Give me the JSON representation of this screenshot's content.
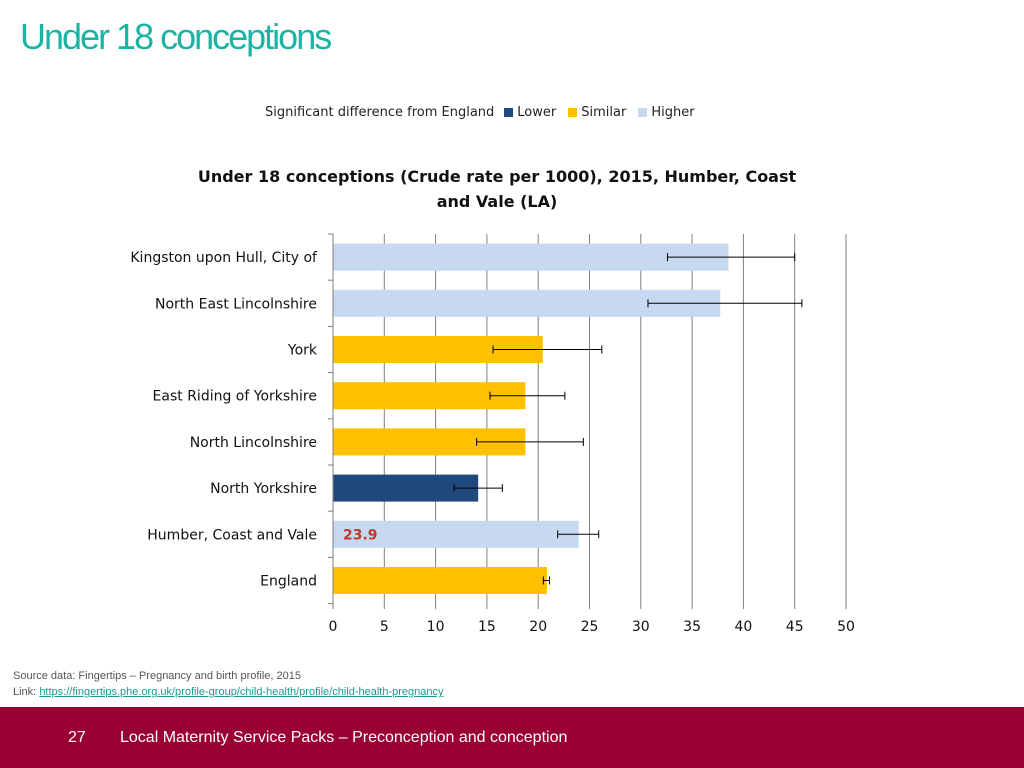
{
  "slide": {
    "title": "Under 18 conceptions"
  },
  "legend": {
    "label": "Significant difference from England",
    "items": [
      {
        "label": "Lower",
        "color": "#1f497d"
      },
      {
        "label": "Similar",
        "color": "#ffc000"
      },
      {
        "label": "Higher",
        "color": "#c6d9f1"
      }
    ]
  },
  "chart_data": {
    "type": "bar",
    "orientation": "horizontal",
    "title": "Under 18 conceptions (Crude rate per 1000), 2015, Humber, Coast and Vale (LA)",
    "title_lines": [
      "Under 18 conceptions (Crude rate per 1000), 2015, Humber, Coast",
      "and Vale (LA)"
    ],
    "xlim": [
      0,
      50
    ],
    "xticks": [
      0,
      5,
      10,
      15,
      20,
      25,
      30,
      35,
      40,
      45,
      50
    ],
    "grid": true,
    "categories": [
      "Kingston upon Hull, City of",
      "North East Lincolnshire",
      "York",
      "East Riding of Yorkshire",
      "North Lincolnshire",
      "North Yorkshire",
      "Humber, Coast and Vale",
      "England"
    ],
    "values": [
      38.5,
      37.7,
      20.4,
      18.7,
      18.7,
      14.1,
      23.9,
      20.8
    ],
    "ci_lower": [
      32.6,
      30.7,
      15.6,
      15.3,
      14.0,
      11.8,
      21.9,
      20.5
    ],
    "ci_upper": [
      45.0,
      45.7,
      26.2,
      22.6,
      24.4,
      16.5,
      25.9,
      21.1
    ],
    "significance": [
      "Higher",
      "Higher",
      "Similar",
      "Similar",
      "Similar",
      "Lower",
      "Higher",
      "Similar"
    ],
    "annotations": [
      {
        "category": "Humber, Coast and Vale",
        "text": "23.9"
      }
    ]
  },
  "source": {
    "line": "Source data: Fingertips – Pregnancy and birth profile, 2015",
    "link_prefix": "Link:",
    "link_text": "https://fingertips.phe.org.uk/profile-group/child-health/profile/child-health-pregnancy"
  },
  "footer": {
    "page_number": "27",
    "title": "Local Maternity Service Packs – Preconception and conception"
  }
}
